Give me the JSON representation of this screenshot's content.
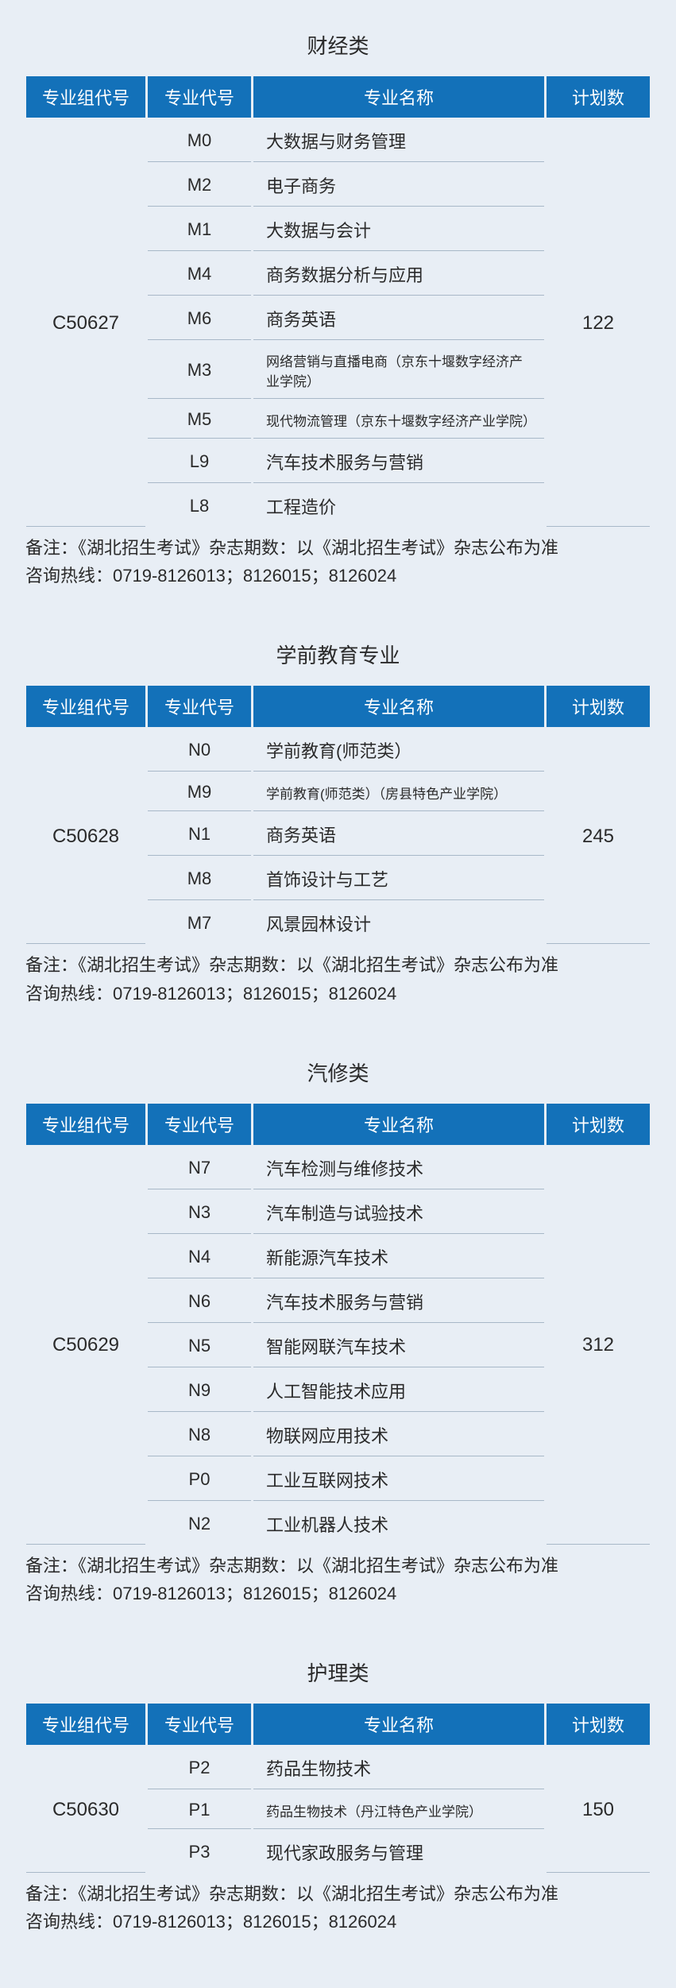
{
  "colors": {
    "header_bg": "#1371b9",
    "header_text": "#ffffff",
    "body_bg": "#e8eef5",
    "text": "#2a2a2a",
    "border": "#a8b8c8"
  },
  "columns": {
    "group": "专业组代号",
    "code": "专业代号",
    "name": "专业名称",
    "count": "计划数"
  },
  "note_line1": "备注：《湖北招生考试》杂志期数：以《湖北招生考试》杂志公布为准",
  "note_line2": "咨询热线：0719-8126013；8126015；8126024",
  "sections": [
    {
      "title": "财经类",
      "group": "C50627",
      "count": "122",
      "rows": [
        {
          "code": "M0",
          "name": "大数据与财务管理",
          "small": false
        },
        {
          "code": "M2",
          "name": "电子商务",
          "small": false
        },
        {
          "code": "M1",
          "name": "大数据与会计",
          "small": false
        },
        {
          "code": "M4",
          "name": "商务数据分析与应用",
          "small": false
        },
        {
          "code": "M6",
          "name": "商务英语",
          "small": false
        },
        {
          "code": "M3",
          "name": "网络营销与直播电商（京东十堰数字经济产业学院）",
          "small": true
        },
        {
          "code": "M5",
          "name": "现代物流管理（京东十堰数字经济产业学院）",
          "small": true
        },
        {
          "code": "L9",
          "name": "汽车技术服务与营销",
          "small": false
        },
        {
          "code": "L8",
          "name": "工程造价",
          "small": false
        }
      ]
    },
    {
      "title": "学前教育专业",
      "group": "C50628",
      "count": "245",
      "rows": [
        {
          "code": "N0",
          "name": "学前教育(师范类）",
          "small": false
        },
        {
          "code": "M9",
          "name": "学前教育(师范类）（房县特色产业学院）",
          "small": true
        },
        {
          "code": "N1",
          "name": "商务英语",
          "small": false
        },
        {
          "code": "M8",
          "name": "首饰设计与工艺",
          "small": false
        },
        {
          "code": "M7",
          "name": "风景园林设计",
          "small": false
        }
      ]
    },
    {
      "title": "汽修类",
      "group": "C50629",
      "count": "312",
      "rows": [
        {
          "code": "N7",
          "name": "汽车检测与维修技术",
          "small": false
        },
        {
          "code": "N3",
          "name": "汽车制造与试验技术",
          "small": false
        },
        {
          "code": "N4",
          "name": "新能源汽车技术",
          "small": false
        },
        {
          "code": "N6",
          "name": "汽车技术服务与营销",
          "small": false
        },
        {
          "code": "N5",
          "name": "智能网联汽车技术",
          "small": false
        },
        {
          "code": "N9",
          "name": "人工智能技术应用",
          "small": false
        },
        {
          "code": "N8",
          "name": "物联网应用技术",
          "small": false
        },
        {
          "code": "P0",
          "name": "工业互联网技术",
          "small": false
        },
        {
          "code": "N2",
          "name": "工业机器人技术",
          "small": false
        }
      ]
    },
    {
      "title": "护理类",
      "group": "C50630",
      "count": "150",
      "rows": [
        {
          "code": "P2",
          "name": "药品生物技术",
          "small": false
        },
        {
          "code": "P1",
          "name": "药品生物技术（丹江特色产业学院）",
          "small": true
        },
        {
          "code": "P3",
          "name": "现代家政服务与管理",
          "small": false
        }
      ]
    }
  ]
}
